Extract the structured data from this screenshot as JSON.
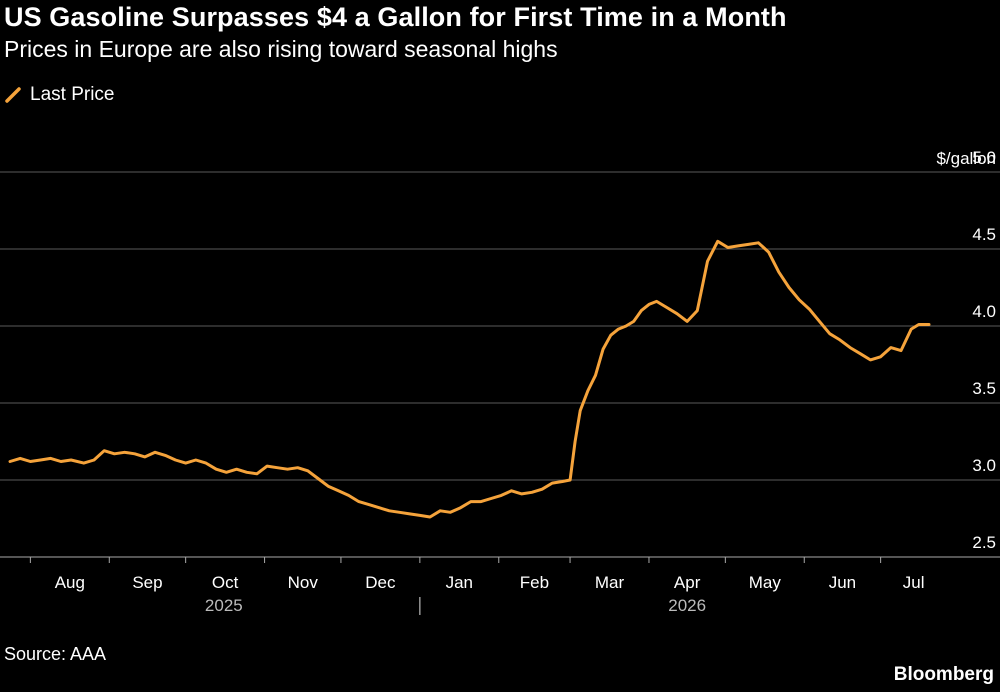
{
  "header": {
    "title": "US Gasoline Surpasses $4 a Gallon for First Time in a Month",
    "subtitle": "Prices in Europe are also rising toward seasonal highs"
  },
  "legend": {
    "label": "Last Price",
    "color": "#f5a33b"
  },
  "footer": {
    "source": "Source: AAA",
    "brand": "Bloomberg"
  },
  "colors": {
    "background": "#000000",
    "line": "#f5a33b",
    "grid": "#5a5a5a",
    "text": "#ffffff"
  },
  "chart_data": {
    "type": "line",
    "title": "US Gasoline Surpasses $4 a Gallon for First Time in a Month",
    "subtitle": "Prices in Europe are also rising toward seasonal highs",
    "ylabel": "$/gallon",
    "ylim": [
      2.5,
      5.0
    ],
    "yticks": [
      "5.0",
      "4.5",
      "4.0",
      "3.5",
      "3.0",
      "2.5"
    ],
    "y_axis_side": "right",
    "grid": "horizontal",
    "legend_position": "top-left",
    "x_axis": {
      "months": [
        "Aug",
        "Sep",
        "Oct",
        "Nov",
        "Dec",
        "Jan",
        "Feb",
        "Mar",
        "Apr",
        "May",
        "Jun",
        "Jul"
      ],
      "month_starts": [
        "2025-08-01",
        "2025-09-01",
        "2025-10-01",
        "2025-11-01",
        "2025-12-01",
        "2026-01-01",
        "2026-02-01",
        "2026-03-01",
        "2026-04-01",
        "2026-05-01",
        "2026-06-01",
        "2026-07-01"
      ],
      "years": [
        {
          "label": "2025",
          "center": "2025-10-16"
        },
        {
          "label": "2026",
          "center": "2026-04-16"
        }
      ],
      "year_divider": "2026-01-01",
      "range": [
        "2025-07-24",
        "2026-07-31"
      ]
    },
    "series": [
      {
        "name": "Last Price",
        "color": "#f5a33b",
        "x": [
          "2025-07-24",
          "2025-07-28",
          "2025-08-01",
          "2025-08-05",
          "2025-08-09",
          "2025-08-13",
          "2025-08-17",
          "2025-08-22",
          "2025-08-26",
          "2025-08-30",
          "2025-09-03",
          "2025-09-07",
          "2025-09-11",
          "2025-09-15",
          "2025-09-19",
          "2025-09-23",
          "2025-09-27",
          "2025-10-01",
          "2025-10-05",
          "2025-10-09",
          "2025-10-13",
          "2025-10-17",
          "2025-10-21",
          "2025-10-25",
          "2025-10-29",
          "2025-11-02",
          "2025-11-06",
          "2025-11-10",
          "2025-11-14",
          "2025-11-18",
          "2025-11-22",
          "2025-11-26",
          "2025-11-30",
          "2025-12-04",
          "2025-12-08",
          "2025-12-12",
          "2025-12-16",
          "2025-12-20",
          "2025-12-24",
          "2025-12-28",
          "2026-01-01",
          "2026-01-05",
          "2026-01-09",
          "2026-01-13",
          "2026-01-17",
          "2026-01-21",
          "2026-01-25",
          "2026-01-29",
          "2026-02-02",
          "2026-02-06",
          "2026-02-10",
          "2026-02-14",
          "2026-02-18",
          "2026-02-22",
          "2026-02-26",
          "2026-03-01",
          "2026-03-03",
          "2026-03-05",
          "2026-03-08",
          "2026-03-11",
          "2026-03-14",
          "2026-03-17",
          "2026-03-20",
          "2026-03-23",
          "2026-03-26",
          "2026-03-29",
          "2026-04-01",
          "2026-04-04",
          "2026-04-08",
          "2026-04-12",
          "2026-04-16",
          "2026-04-20",
          "2026-04-24",
          "2026-04-28",
          "2026-05-02",
          "2026-05-06",
          "2026-05-10",
          "2026-05-14",
          "2026-05-18",
          "2026-05-22",
          "2026-05-26",
          "2026-05-30",
          "2026-06-03",
          "2026-06-07",
          "2026-06-11",
          "2026-06-15",
          "2026-06-19",
          "2026-06-23",
          "2026-06-27",
          "2026-07-01",
          "2026-07-05",
          "2026-07-09",
          "2026-07-13",
          "2026-07-16",
          "2026-07-20"
        ],
        "y": [
          3.12,
          3.14,
          3.12,
          3.13,
          3.14,
          3.12,
          3.13,
          3.11,
          3.13,
          3.19,
          3.17,
          3.18,
          3.17,
          3.15,
          3.18,
          3.16,
          3.13,
          3.11,
          3.13,
          3.11,
          3.07,
          3.05,
          3.07,
          3.05,
          3.04,
          3.09,
          3.08,
          3.07,
          3.08,
          3.06,
          3.01,
          2.96,
          2.93,
          2.9,
          2.86,
          2.84,
          2.82,
          2.8,
          2.79,
          2.78,
          2.77,
          2.76,
          2.8,
          2.79,
          2.82,
          2.86,
          2.86,
          2.88,
          2.9,
          2.93,
          2.91,
          2.92,
          2.94,
          2.98,
          2.99,
          3.0,
          3.25,
          3.45,
          3.58,
          3.68,
          3.85,
          3.94,
          3.98,
          4.0,
          4.03,
          4.1,
          4.14,
          4.16,
          4.12,
          4.08,
          4.03,
          4.1,
          4.42,
          4.55,
          4.51,
          4.52,
          4.53,
          4.54,
          4.48,
          4.35,
          4.25,
          4.17,
          4.11,
          4.03,
          3.95,
          3.91,
          3.86,
          3.82,
          3.78,
          3.8,
          3.86,
          3.84,
          3.98,
          4.01,
          4.01
        ]
      }
    ]
  }
}
